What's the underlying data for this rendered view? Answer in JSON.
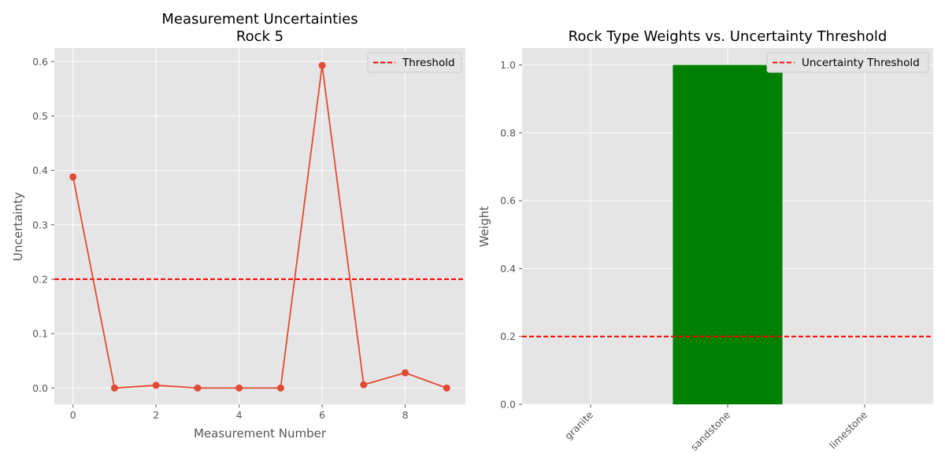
{
  "chart_data": [
    {
      "type": "line",
      "title": [
        "Measurement Uncertainties",
        "Rock 5"
      ],
      "xlabel": "Measurement Number",
      "ylabel": "Uncertainty",
      "x": [
        0,
        1,
        2,
        3,
        4,
        5,
        6,
        7,
        8,
        9
      ],
      "series": [
        {
          "values": [
            0.388,
            0.0,
            0.005,
            0.0,
            0.0,
            0.0,
            0.593,
            0.006,
            0.028,
            0.0
          ],
          "color": "#E24A33"
        }
      ],
      "xlim": [
        -0.45,
        9.45
      ],
      "ylim": [
        -0.03,
        0.625
      ],
      "xticks": [
        0,
        2,
        4,
        6,
        8
      ],
      "yticks": [
        0.0,
        0.1,
        0.2,
        0.3,
        0.4,
        0.5,
        0.6
      ],
      "ytick_labels": [
        "0.0",
        "0.1",
        "0.2",
        "0.3",
        "0.4",
        "0.5",
        "0.6"
      ],
      "threshold": {
        "value": 0.2,
        "label": "Threshold",
        "color": "#FF0000"
      },
      "legend_position": "top-right",
      "grid": true
    },
    {
      "type": "bar",
      "title": "Rock Type Weights vs. Uncertainty Threshold",
      "xlabel": "",
      "ylabel": "Weight",
      "categories": [
        "granite",
        "sandstone",
        "limestone"
      ],
      "values": [
        0.0,
        1.0,
        0.0
      ],
      "bar_color": "#008000",
      "ylim": [
        0,
        1.05
      ],
      "yticks": [
        0.0,
        0.2,
        0.4,
        0.6,
        0.8,
        1.0
      ],
      "ytick_labels": [
        "0.0",
        "0.2",
        "0.4",
        "0.6",
        "0.8",
        "1.0"
      ],
      "threshold": {
        "value": 0.2,
        "label": "Uncertainty Threshold",
        "color": "#FF0000"
      },
      "legend_position": "top-right",
      "grid": true
    }
  ]
}
